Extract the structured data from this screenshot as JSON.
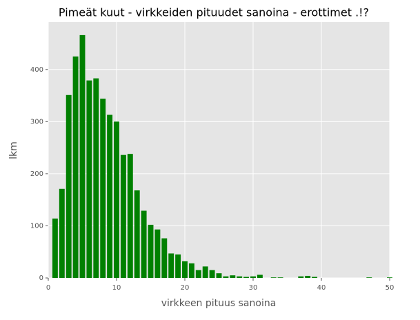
{
  "chart_data": {
    "type": "bar",
    "title": "Pimeät kuut - virkkeiden pituudet sanoina - erottimet .!?",
    "x_label": "virkkeen pituus sanoina",
    "y_label": "lkm",
    "x": [
      1,
      2,
      3,
      4,
      5,
      6,
      7,
      8,
      9,
      10,
      11,
      12,
      13,
      14,
      15,
      16,
      17,
      18,
      19,
      20,
      21,
      22,
      23,
      24,
      25,
      26,
      27,
      28,
      29,
      30,
      31,
      32,
      33,
      34,
      35,
      36,
      37,
      38,
      39,
      40,
      41,
      42,
      43,
      44,
      45,
      46,
      47,
      48,
      49,
      50
    ],
    "values": [
      114,
      171,
      351,
      425,
      466,
      379,
      383,
      344,
      313,
      300,
      236,
      238,
      168,
      129,
      102,
      93,
      76,
      47,
      45,
      32,
      28,
      15,
      22,
      15,
      9,
      3,
      5,
      3,
      2,
      3,
      6,
      0,
      1,
      1,
      0,
      0,
      3,
      4,
      2,
      0,
      0,
      0,
      0,
      0,
      0,
      0,
      1,
      0,
      0,
      1
    ],
    "color": "#008000",
    "xlim": [
      0,
      50
    ],
    "xticks": [
      0,
      10,
      20,
      30,
      40,
      50
    ],
    "ylim": [
      0,
      491
    ],
    "yticks": [
      0,
      100,
      200,
      300,
      400
    ],
    "grid": true
  }
}
